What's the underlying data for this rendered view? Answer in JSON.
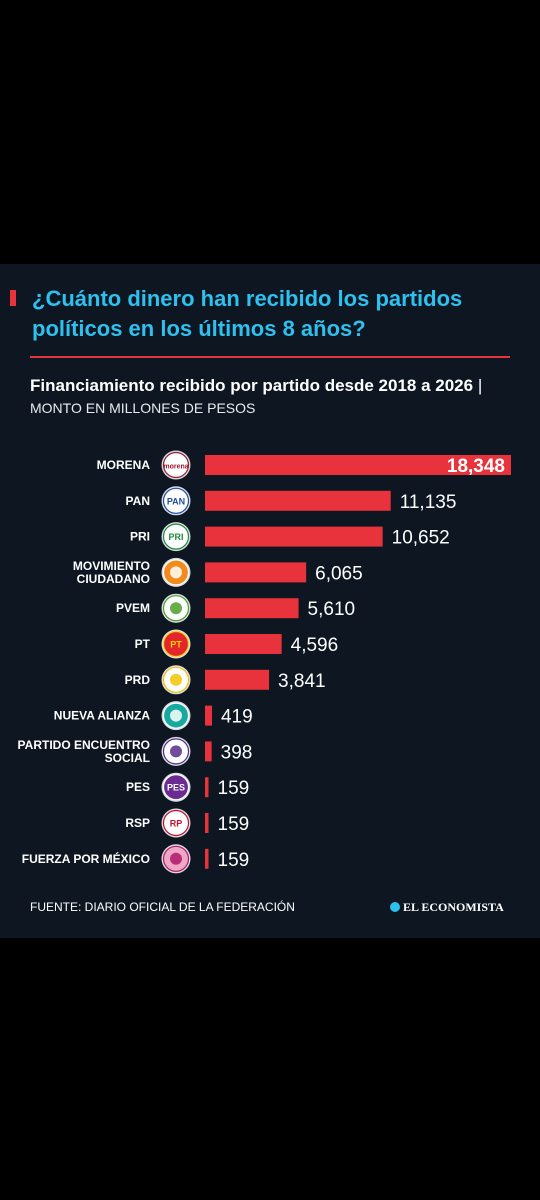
{
  "colors": {
    "bar": "#e8323c",
    "title": "#2ec0ef",
    "background": "#0d1621"
  },
  "header": {
    "title": "¿Cuánto dinero han recibido los partidos políticos en los últimos 8 años?",
    "subtitle_bold": "Financiamiento recibido por partido desde 2018 a 2026",
    "subtitle_separator": "|",
    "subtitle_unit": "MONTO EN MILLONES DE PESOS"
  },
  "chart_data": {
    "type": "bar",
    "orientation": "horizontal",
    "categories": [
      "MORENA",
      "PAN",
      "PRI",
      "MOVIMIENTO CIUDADANO",
      "PVEM",
      "PT",
      "PRD",
      "NUEVA ALIANZA",
      "PARTIDO ENCUENTRO SOCIAL",
      "PES",
      "RSP",
      "FUERZA POR MÉXICO"
    ],
    "category_lines": [
      [
        "MORENA"
      ],
      [
        "PAN"
      ],
      [
        "PRI"
      ],
      [
        "MOVIMIENTO",
        "CIUDADANO"
      ],
      [
        "PVEM"
      ],
      [
        "PT"
      ],
      [
        "PRD"
      ],
      [
        "NUEVA ALIANZA"
      ],
      [
        "PARTIDO ENCUENTRO",
        "SOCIAL"
      ],
      [
        "PES"
      ],
      [
        "RSP"
      ],
      [
        "FUERZA POR MÉXICO"
      ]
    ],
    "values": [
      18348,
      11135,
      10652,
      6065,
      5610,
      4596,
      3841,
      419,
      398,
      159,
      159,
      159
    ],
    "value_labels": [
      "18,348",
      "11,135",
      "10,652",
      "6,065",
      "5,610",
      "4,596",
      "3,841",
      "419",
      "398",
      "159",
      "159",
      "159"
    ],
    "logos": [
      {
        "icon": "morena-logo-icon",
        "text": "morena",
        "bg": "#ffffff",
        "fg": "#9b1b2b"
      },
      {
        "icon": "pan-logo-icon",
        "text": "PAN",
        "bg": "#ffffff",
        "fg": "#1d4fa3"
      },
      {
        "icon": "pri-logo-icon",
        "text": "PRI",
        "bg": "#ffffff",
        "fg": "#1f8a3c"
      },
      {
        "icon": "movimiento-ciudadano-logo-icon",
        "text": "",
        "bg": "#f28a1e",
        "fg": "#ffffff"
      },
      {
        "icon": "pvem-logo-icon",
        "text": "",
        "bg": "#ffffff",
        "fg": "#4aa02c"
      },
      {
        "icon": "pt-logo-icon",
        "text": "PT",
        "bg": "#e3262b",
        "fg": "#ffd400"
      },
      {
        "icon": "prd-logo-icon",
        "text": "",
        "bg": "#ffffff",
        "fg": "#f2c400"
      },
      {
        "icon": "nueva-alianza-logo-icon",
        "text": "",
        "bg": "#16a9a0",
        "fg": "#ffffff"
      },
      {
        "icon": "partido-encuentro-social-logo-icon",
        "text": "",
        "bg": "#ffffff",
        "fg": "#5a2e8a"
      },
      {
        "icon": "pes-logo-icon",
        "text": "PES",
        "bg": "#6a2c91",
        "fg": "#ffffff"
      },
      {
        "icon": "rsp-logo-icon",
        "text": "RP",
        "bg": "#ffffff",
        "fg": "#c8102e"
      },
      {
        "icon": "fuerza-por-mexico-logo-icon",
        "text": "",
        "bg": "#f0a7c5",
        "fg": "#b0196b"
      }
    ],
    "xlim": [
      0,
      18348
    ]
  },
  "footer": {
    "source": "FUENTE: DIARIO OFICIAL DE LA FEDERACIÓN",
    "brand": "EL ECONOMISTA"
  }
}
